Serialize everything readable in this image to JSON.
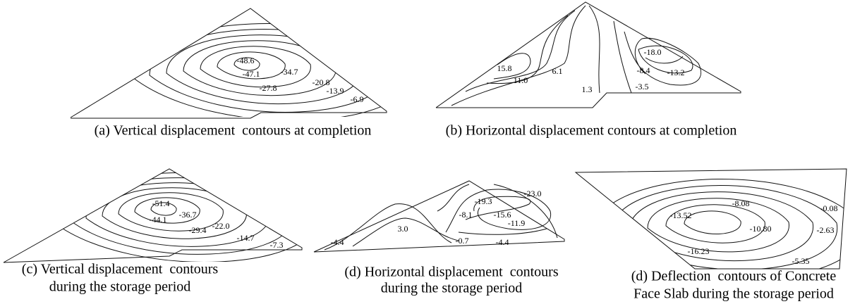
{
  "panels": [
    {
      "caption": [
        "(a) Vertical displacement  contours at completion"
      ],
      "labels": [
        "-48.6",
        "-47.1",
        "-34.7",
        "-20.8",
        "-27.8",
        "-13.9",
        "-6.9"
      ]
    },
    {
      "caption": [
        "(b) Horizontal displacement contours at completion"
      ],
      "labels": [
        "15.8",
        "11.0",
        "6.1",
        "1.3",
        "-18.0",
        "-8.4",
        "-13.2",
        "-3.5"
      ]
    },
    {
      "caption": [
        "(c) Vertical displacement  contours",
        "during the storage period"
      ],
      "labels": [
        "-51.4",
        "-44.1",
        "-36.7",
        "-22.0",
        "-29.4",
        "-14.7",
        "-7.3"
      ]
    },
    {
      "caption": [
        "(d) Horizontal displacement  contours",
        "during the storage period"
      ],
      "labels": [
        "-19.3",
        "-23.0",
        "-8.1",
        "-15.6",
        "-11.9",
        "3.0",
        "-4.4",
        "-0.7",
        "-4.4"
      ]
    },
    {
      "caption": [
        "(d) Deflection  contours of Concrete",
        "Face Slab during the storage period"
      ],
      "labels": [
        "-13.52",
        "-8.08",
        "-0.08",
        "-10.80",
        "-2.63",
        "-16.23",
        "-5.35"
      ]
    }
  ]
}
